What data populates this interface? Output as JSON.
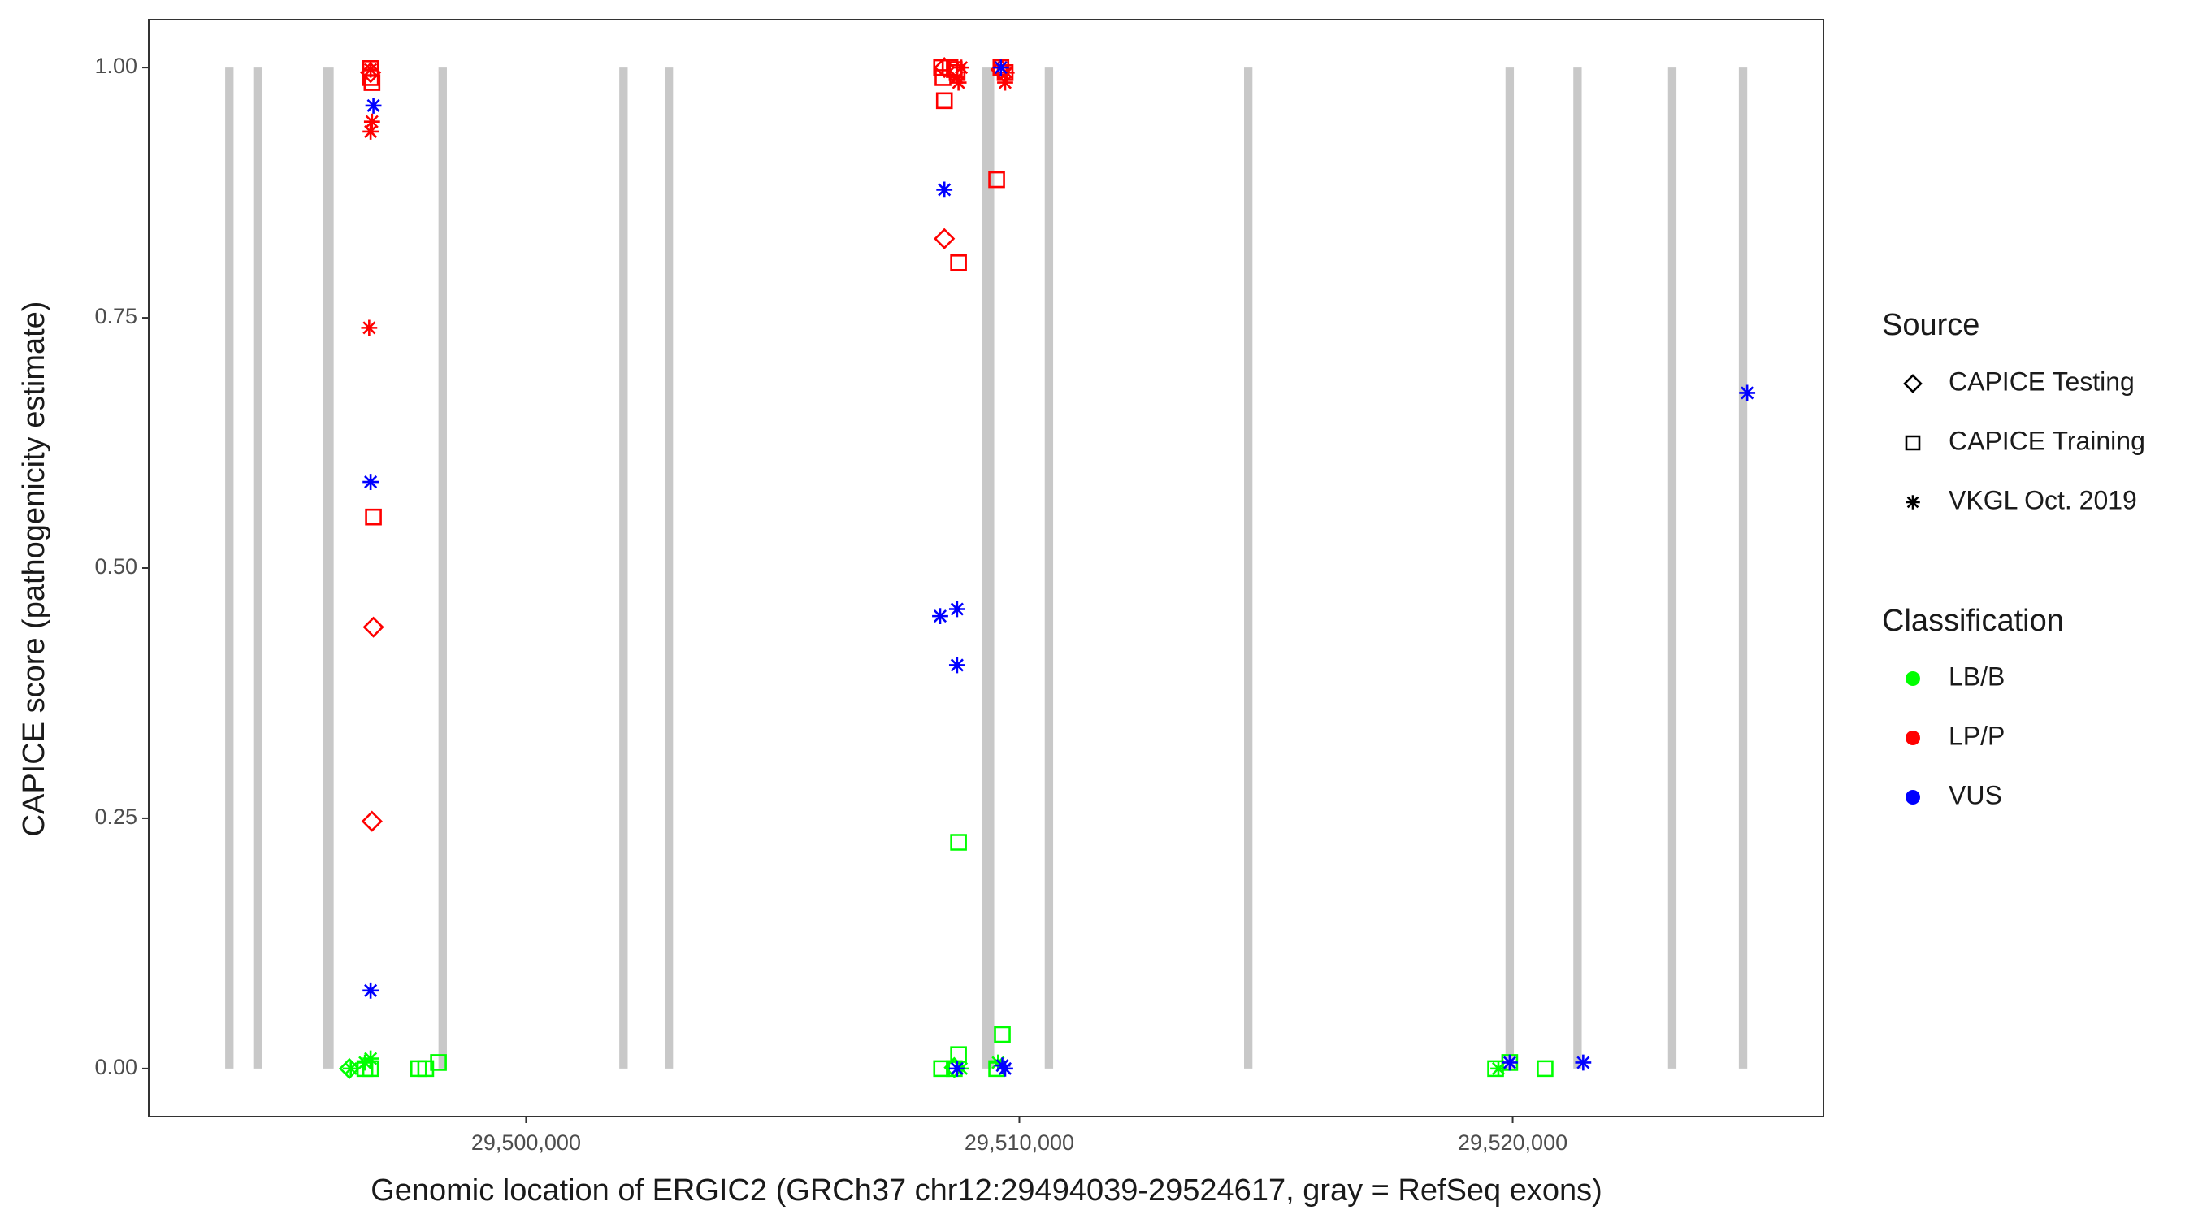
{
  "chart_data": {
    "type": "scatter",
    "x_label": "Genomic location of ERGIC2 (GRCh37 chr12:29494039-29524617, gray = RefSeq exons)",
    "y_label": "CAPICE score (pathogenicity estimate)",
    "xlim": [
      29492350,
      29526300
    ],
    "ylim": [
      -0.048,
      1.048
    ],
    "xticks": [
      {
        "value": 29500000,
        "label": "29,500,000"
      },
      {
        "value": 29510000,
        "label": "29,510,000"
      },
      {
        "value": 29520000,
        "label": "29,520,000"
      }
    ],
    "yticks": [
      {
        "value": 0,
        "label": "0.00"
      },
      {
        "value": 0.25,
        "label": "0.25"
      },
      {
        "value": 0.5,
        "label": "0.50"
      },
      {
        "value": 0.75,
        "label": "0.75"
      },
      {
        "value": 1,
        "label": "1.00"
      }
    ],
    "exon_color": "#c8c8c8",
    "exons": [
      [
        29493900,
        29494070
      ],
      [
        29494470,
        29494640
      ],
      [
        29495880,
        29496100
      ],
      [
        29498225,
        29498395
      ],
      [
        29501890,
        29502060
      ],
      [
        29502810,
        29502980
      ],
      [
        29509250,
        29509490
      ],
      [
        29510515,
        29510685
      ],
      [
        29514555,
        29514725
      ],
      [
        29519855,
        29520025
      ],
      [
        29521230,
        29521400
      ],
      [
        29523150,
        29523320
      ],
      [
        29524585,
        29524755
      ]
    ],
    "legend_source_title": "Source",
    "sources": [
      {
        "name": "CAPICE Testing",
        "shape": "diamond"
      },
      {
        "name": "CAPICE Training",
        "shape": "square"
      },
      {
        "name": "VKGL Oct. 2019",
        "shape": "asterisk"
      }
    ],
    "legend_class_title": "Classification",
    "classifications": [
      {
        "name": "LB/B",
        "color": "#00ff00"
      },
      {
        "name": "LP/P",
        "color": "#ff0000"
      },
      {
        "name": "VUS",
        "color": "#0000ff"
      }
    ],
    "series": [
      {
        "source": "CAPICE Training",
        "classification": "LB/B",
        "x": [
          29496734,
          29496849,
          29497823,
          29497966,
          29498224,
          29508423,
          29508681,
          29508767,
          29508767,
          29509540,
          29509655,
          29519654,
          29519940,
          29520657
        ],
        "y": [
          0,
          0,
          0,
          0,
          0.006,
          0,
          0,
          0.226,
          0.014,
          0,
          0.034,
          0,
          0.006,
          0
        ]
      },
      {
        "source": "CAPICE Testing",
        "classification": "LB/B",
        "x": [
          29496419,
          29508681
        ],
        "y": [
          0,
          0.001
        ]
      },
      {
        "source": "VKGL Oct. 2019",
        "classification": "LB/B",
        "x": [
          29496447,
          29496734,
          29496849,
          29508824,
          29509569,
          29519711
        ],
        "y": [
          0,
          0.006,
          0.01,
          0,
          0.006,
          0
        ]
      },
      {
        "source": "CAPICE Training",
        "classification": "LP/P",
        "x": [
          29496849,
          29496849,
          29496877,
          29496906,
          29508423,
          29508452,
          29508480,
          29508595,
          29508681,
          29508738,
          29508767,
          29509540,
          29509626,
          29509712
        ],
        "y": [
          0.999,
          0.99,
          0.985,
          0.551,
          1,
          0.99,
          0.967,
          1,
          0.998,
          0.995,
          0.805,
          0.888,
          1,
          0.995
        ]
      },
      {
        "source": "CAPICE Testing",
        "classification": "LP/P",
        "x": [
          29496877,
          29496906,
          29496849,
          29508480,
          29508480,
          29509626
        ],
        "y": [
          0.247,
          0.441,
          0.995,
          0.829,
          1,
          0.998
        ]
      },
      {
        "source": "VKGL Oct. 2019",
        "classification": "LP/P",
        "x": [
          29496820,
          29496849,
          29496877,
          29496849,
          29508738,
          29508767,
          29509626,
          29509712,
          29509741,
          29508824
        ],
        "y": [
          0.74,
          0.936,
          0.946,
          0.998,
          0.99,
          0.985,
          1,
          0.985,
          0.995,
          1
        ]
      },
      {
        "source": "VKGL Oct. 2019",
        "classification": "VUS",
        "x": [
          29496906,
          29496849,
          29496849,
          29508480,
          29508394,
          29508738,
          29508738,
          29509626,
          29508738,
          29509655,
          29509712,
          29519940,
          29521430,
          29524754
        ],
        "y": [
          0.962,
          0.586,
          0.078,
          0.878,
          0.452,
          0.459,
          0.403,
          1,
          0,
          0.003,
          0,
          0.006,
          0.006,
          0.675
        ]
      }
    ]
  }
}
